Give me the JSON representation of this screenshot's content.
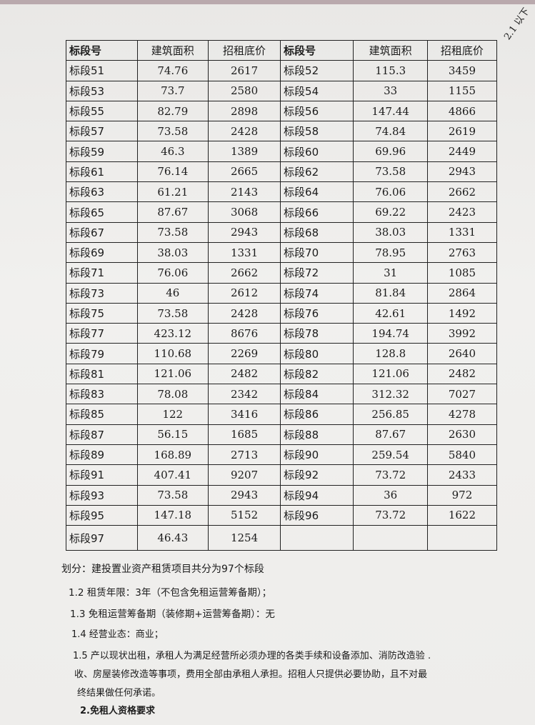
{
  "corner_note": "2.1 以下",
  "table": {
    "headers": [
      "标段号",
      "建筑面积",
      "招租底价",
      "标段号",
      "建筑面积",
      "招租底价"
    ],
    "rows": [
      [
        "标段51",
        "74.76",
        "2617",
        "标段52",
        "115.3",
        "3459"
      ],
      [
        "标段53",
        "73.7",
        "2580",
        "标段54",
        "33",
        "1155"
      ],
      [
        "标段55",
        "82.79",
        "2898",
        "标段56",
        "147.44",
        "4866"
      ],
      [
        "标段57",
        "73.58",
        "2428",
        "标段58",
        "74.84",
        "2619"
      ],
      [
        "标段59",
        "46.3",
        "1389",
        "标段60",
        "69.96",
        "2449"
      ],
      [
        "标段61",
        "76.14",
        "2665",
        "标段62",
        "73.58",
        "2943"
      ],
      [
        "标段63",
        "61.21",
        "2143",
        "标段64",
        "76.06",
        "2662"
      ],
      [
        "标段65",
        "87.67",
        "3068",
        "标段66",
        "69.22",
        "2423"
      ],
      [
        "标段67",
        "73.58",
        "2943",
        "标段68",
        "38.03",
        "1331"
      ],
      [
        "标段69",
        "38.03",
        "1331",
        "标段70",
        "78.95",
        "2763"
      ],
      [
        "标段71",
        "76.06",
        "2662",
        "标段72",
        "31",
        "1085"
      ],
      [
        "标段73",
        "46",
        "2612",
        "标段74",
        "81.84",
        "2864"
      ],
      [
        "标段75",
        "73.58",
        "2428",
        "标段76",
        "42.61",
        "1492"
      ],
      [
        "标段77",
        "423.12",
        "8676",
        "标段78",
        "194.74",
        "3992"
      ],
      [
        "标段79",
        "110.68",
        "2269",
        "标段80",
        "128.8",
        "2640"
      ],
      [
        "标段81",
        "121.06",
        "2482",
        "标段82",
        "121.06",
        "2482"
      ],
      [
        "标段83",
        "78.08",
        "2342",
        "标段84",
        "312.32",
        "7027"
      ],
      [
        "标段85",
        "122",
        "3416",
        "标段86",
        "256.85",
        "4278"
      ],
      [
        "标段87",
        "56.15",
        "1685",
        "标段88",
        "87.67",
        "2630"
      ],
      [
        "标段89",
        "168.89",
        "2713",
        "标段90",
        "259.54",
        "5840"
      ],
      [
        "标段91",
        "407.41",
        "9207",
        "标段92",
        "73.72",
        "2433"
      ],
      [
        "标段93",
        "73.58",
        "2943",
        "标段94",
        "36",
        "972"
      ],
      [
        "标段95",
        "147.18",
        "5152",
        "标段96",
        "73.72",
        "1622"
      ],
      [
        "标段97",
        "46.43",
        "1254",
        "",
        "",
        ""
      ]
    ]
  },
  "paragraphs": {
    "division": "划分：建投置业资产租赁项目共分为97个标段",
    "p12": "1.2 租赁年限：3年（不包含免租运营筹备期）；",
    "p13": "1.3 免租运营筹备期（装修期+运营筹备期）：无",
    "p14": "1.4 经营业态：商业；",
    "p15_line1": "1.5 产以现状出租，承租人为满足经营所必须办理的各类手续和设备添加、消防改造验 .",
    "p15_line2": "收、房屋装修改造等事项，费用全部由承租人承担。招租人只提供必要协助，且不对最",
    "p15_line3": "终结果做任何承诺。",
    "section2": "2.免租人资格要求"
  }
}
